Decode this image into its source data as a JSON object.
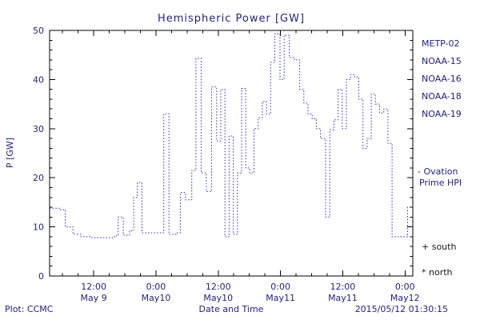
{
  "title": "Hemispheric Power [GW]",
  "footer": {
    "left": "Plot: CCMC",
    "right": "2015/05/12 01:30:15"
  },
  "legend": {
    "satellites": [
      {
        "label": "METP-02",
        "color": "#15154a"
      },
      {
        "label": "NOAA-15",
        "color": "#2929c8"
      },
      {
        "label": "NOAA-16",
        "color": "#2fb8c8"
      },
      {
        "label": "NOAA-18",
        "color": "#6ec86e"
      },
      {
        "label": "NOAA-19",
        "color": "#f09030"
      }
    ],
    "series_note": {
      "line1": "- Ovation",
      "line2": "Prime HPI",
      "color": "#2929c8"
    },
    "south_marker": "+ south",
    "north_marker": "* north"
  },
  "chart_data": {
    "type": "line",
    "step": true,
    "title": "Hemispheric Power [GW]",
    "xlabel": "Date and Time",
    "ylabel": "P [GW]",
    "ylim": [
      0,
      50
    ],
    "yticks": [
      0,
      10,
      20,
      30,
      40,
      50
    ],
    "xlim_hours": [
      0,
      70
    ],
    "x_ticks": [
      {
        "hour": 8.5,
        "time": "12:00",
        "date": "May 9"
      },
      {
        "hour": 20.5,
        "time": "0:00",
        "date": "May10"
      },
      {
        "hour": 32.5,
        "time": "12:00",
        "date": "May10"
      },
      {
        "hour": 44.5,
        "time": "0:00",
        "date": "May11"
      },
      {
        "hour": 56.5,
        "time": "12:00",
        "date": "May11"
      },
      {
        "hour": 68.5,
        "time": "0:00",
        "date": "May12"
      }
    ],
    "line_color": "#2929c8",
    "axis_color": "#000000",
    "grid": false,
    "points": [
      [
        0,
        13.8
      ],
      [
        2,
        13.5
      ],
      [
        3,
        10
      ],
      [
        4.5,
        8.5
      ],
      [
        6,
        8
      ],
      [
        8,
        7.8
      ],
      [
        10.5,
        7.8
      ],
      [
        12.5,
        8.2
      ],
      [
        13.2,
        12
      ],
      [
        14.2,
        8.3
      ],
      [
        15.4,
        9.2
      ],
      [
        16.2,
        16
      ],
      [
        16.9,
        19
      ],
      [
        17.8,
        8.8
      ],
      [
        19.5,
        8.8
      ],
      [
        21,
        8.8
      ],
      [
        22,
        33
      ],
      [
        23,
        8.5
      ],
      [
        24.5,
        8.8
      ],
      [
        25.2,
        17
      ],
      [
        26.2,
        15.5
      ],
      [
        27.4,
        21.5
      ],
      [
        28.2,
        44.3
      ],
      [
        29.2,
        21
      ],
      [
        30.2,
        17.2
      ],
      [
        31.2,
        38.5
      ],
      [
        32.2,
        27.5
      ],
      [
        33,
        38
      ],
      [
        33.8,
        8
      ],
      [
        34.6,
        28.5
      ],
      [
        35.4,
        8.5
      ],
      [
        36.2,
        21
      ],
      [
        37,
        38.2
      ],
      [
        37.8,
        22
      ],
      [
        38.6,
        21
      ],
      [
        39.4,
        30
      ],
      [
        40.2,
        32.2
      ],
      [
        41,
        35.5
      ],
      [
        41.8,
        33
      ],
      [
        42.6,
        43.5
      ],
      [
        43.4,
        49.3
      ],
      [
        44.4,
        40
      ],
      [
        45.2,
        49
      ],
      [
        46.2,
        44.5
      ],
      [
        47.2,
        44
      ],
      [
        48.2,
        38
      ],
      [
        49,
        35.2
      ],
      [
        49.8,
        33
      ],
      [
        50.6,
        32
      ],
      [
        51.4,
        30
      ],
      [
        52.2,
        28
      ],
      [
        53.2,
        12
      ],
      [
        54,
        29.8
      ],
      [
        54.8,
        31.8
      ],
      [
        55.6,
        38
      ],
      [
        56.4,
        30
      ],
      [
        57.2,
        40
      ],
      [
        58,
        41
      ],
      [
        58.8,
        40.5
      ],
      [
        59.6,
        36
      ],
      [
        60.4,
        26
      ],
      [
        61.2,
        28
      ],
      [
        62,
        37
      ],
      [
        62.8,
        35
      ],
      [
        63.6,
        33.2
      ],
      [
        64.4,
        34
      ],
      [
        65.2,
        27
      ],
      [
        66,
        8
      ],
      [
        68.4,
        8
      ],
      [
        69,
        14
      ],
      [
        70,
        14
      ]
    ]
  }
}
